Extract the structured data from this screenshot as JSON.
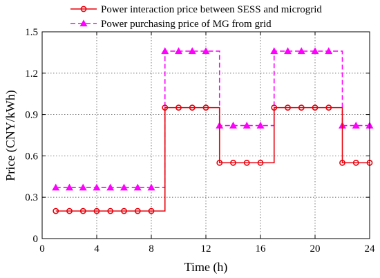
{
  "chart_data": {
    "type": "line",
    "step": "post",
    "xlabel": "Time (h)",
    "ylabel": "Price (CNY/kWh)",
    "xlim": [
      0,
      24
    ],
    "ylim": [
      0,
      1.5
    ],
    "xticks": [
      "0",
      "4",
      "8",
      "12",
      "16",
      "20",
      "24"
    ],
    "yticks": [
      "0",
      "0.3",
      "0.6",
      "0.9",
      "1.2",
      "1.5"
    ],
    "grid": true,
    "legend_position": "top",
    "x": [
      1,
      2,
      3,
      4,
      5,
      6,
      7,
      8,
      9,
      10,
      11,
      12,
      13,
      14,
      15,
      16,
      17,
      18,
      19,
      20,
      21,
      22,
      23,
      24
    ],
    "series": [
      {
        "name": "Power interaction price between SESS and microgrid",
        "color": "#e8000b",
        "marker": "circle",
        "line_style": "solid",
        "values": [
          0.2,
          0.2,
          0.2,
          0.2,
          0.2,
          0.2,
          0.2,
          0.2,
          0.95,
          0.95,
          0.95,
          0.95,
          0.55,
          0.55,
          0.55,
          0.55,
          0.95,
          0.95,
          0.95,
          0.95,
          0.95,
          0.55,
          0.55,
          0.55
        ]
      },
      {
        "name": "Power purchasing price of MG from grid",
        "color": "#ff00ff",
        "marker": "triangle",
        "line_style": "dashed",
        "values": [
          0.37,
          0.37,
          0.37,
          0.37,
          0.37,
          0.37,
          0.37,
          0.37,
          1.36,
          1.36,
          1.36,
          1.36,
          0.82,
          0.82,
          0.82,
          0.82,
          1.36,
          1.36,
          1.36,
          1.36,
          1.36,
          0.82,
          0.82,
          0.82
        ]
      }
    ]
  }
}
